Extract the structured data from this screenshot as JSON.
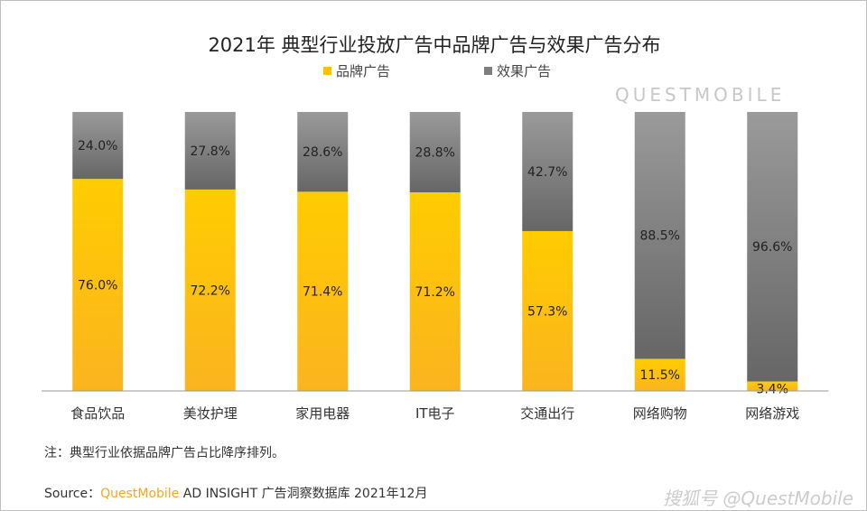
{
  "chart_data": {
    "type": "bar",
    "stacked": true,
    "title": "2021年 典型行业投放广告中品牌广告与效果广告分布",
    "categories": [
      "食品饮品",
      "美妆护理",
      "家用电器",
      "IT电子",
      "交通出行",
      "网络购物",
      "网络游戏"
    ],
    "series": [
      {
        "name": "品牌广告",
        "values": [
          76.0,
          72.2,
          71.4,
          71.2,
          57.3,
          11.5,
          3.4
        ],
        "color": "#ffc000"
      },
      {
        "name": "效果广告",
        "values": [
          24.0,
          27.8,
          28.6,
          28.8,
          42.7,
          88.5,
          96.6
        ],
        "color": "#7f7f7f"
      }
    ],
    "ylim": [
      0,
      100
    ],
    "legend": "top",
    "grid": false
  },
  "note": "注：典型行业依据品牌广告占比降序排列。",
  "source": {
    "label": "Source：",
    "brand": "QuestMobile",
    "rest": " AD INSIGHT 广告洞察数据库 2021年12月"
  },
  "watermark": "搜狐号 @QuestMobile",
  "bg_watermark": "QUESTMOBILE"
}
